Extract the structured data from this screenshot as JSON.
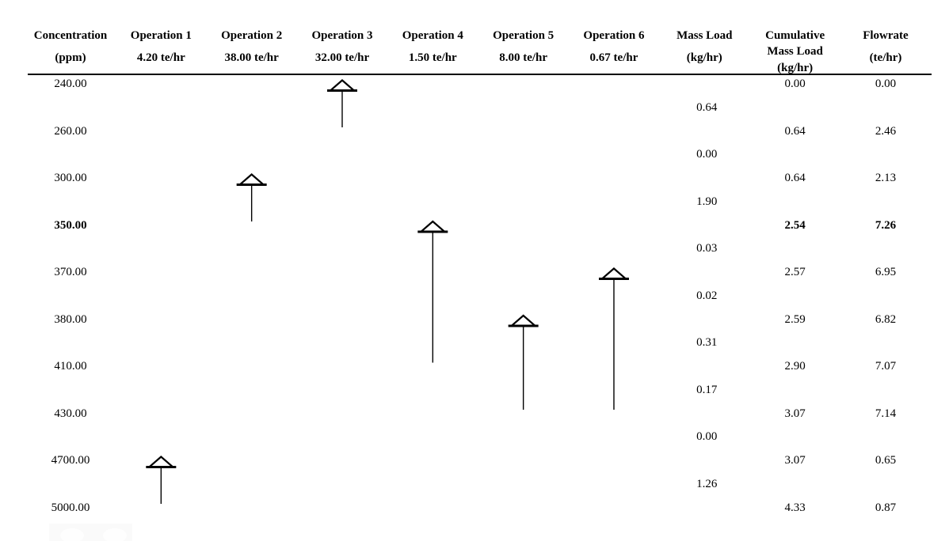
{
  "colors": {
    "background": "#ffffff",
    "text": "#000000",
    "header_rule": "#000000",
    "arrow_stroke": "#000000",
    "arrow_fill": "#ffffff",
    "watermark_box": "#fafafa"
  },
  "chart_data": {
    "type": "table",
    "subtype": "concentration-interval-diagram",
    "title": "",
    "columns": [
      {
        "id": "concentration",
        "lines": [
          "Concentration",
          "(ppm)"
        ]
      },
      {
        "id": "operation-1",
        "lines": [
          "Operation 1",
          "4.20 te/hr"
        ]
      },
      {
        "id": "operation-2",
        "lines": [
          "Operation 2",
          "38.00 te/hr"
        ]
      },
      {
        "id": "operation-3",
        "lines": [
          "Operation 3",
          "32.00 te/hr"
        ]
      },
      {
        "id": "operation-4",
        "lines": [
          "Operation 4",
          "1.50 te/hr"
        ]
      },
      {
        "id": "operation-5",
        "lines": [
          "Operation 5",
          "8.00 te/hr"
        ]
      },
      {
        "id": "operation-6",
        "lines": [
          "Operation 6",
          "0.67 te/hr"
        ]
      },
      {
        "id": "mass-load",
        "lines": [
          "Mass Load",
          "(kg/hr)"
        ]
      },
      {
        "id": "cumulative-mass-load",
        "lines": [
          "Cumulative",
          "Mass Load",
          "(kg/hr)"
        ]
      },
      {
        "id": "flowrate",
        "lines": [
          "Flowrate",
          "(te/hr)"
        ]
      }
    ],
    "rows": [
      {
        "concentration": "240.00",
        "cumulative_mass_load": "0.00",
        "flowrate": "0.00",
        "bold": false
      },
      {
        "concentration": "260.00",
        "cumulative_mass_load": "0.64",
        "flowrate": "2.46",
        "bold": false
      },
      {
        "concentration": "300.00",
        "cumulative_mass_load": "0.64",
        "flowrate": "2.13",
        "bold": false
      },
      {
        "concentration": "350.00",
        "cumulative_mass_load": "2.54",
        "flowrate": "7.26",
        "bold": true
      },
      {
        "concentration": "370.00",
        "cumulative_mass_load": "2.57",
        "flowrate": "6.95",
        "bold": false
      },
      {
        "concentration": "380.00",
        "cumulative_mass_load": "2.59",
        "flowrate": "6.82",
        "bold": false
      },
      {
        "concentration": "410.00",
        "cumulative_mass_load": "2.90",
        "flowrate": "7.07",
        "bold": false
      },
      {
        "concentration": "430.00",
        "cumulative_mass_load": "3.07",
        "flowrate": "7.14",
        "bold": false
      },
      {
        "concentration": "4700.00",
        "cumulative_mass_load": "3.07",
        "flowrate": "0.65",
        "bold": false
      },
      {
        "concentration": "5000.00",
        "cumulative_mass_load": "4.33",
        "flowrate": "0.87",
        "bold": false
      }
    ],
    "interval_mass_loads": [
      "0.64",
      "0.00",
      "1.90",
      "0.03",
      "0.02",
      "0.31",
      "0.17",
      "0.00",
      "1.26"
    ],
    "operations": [
      {
        "label": "Operation 1",
        "flowrate": "4.20 te/hr",
        "column": 1,
        "head_row": 8,
        "tail_row": 9,
        "head_ppm": "4700.00",
        "tail_ppm": "5000.00"
      },
      {
        "label": "Operation 2",
        "flowrate": "38.00 te/hr",
        "column": 2,
        "head_row": 2,
        "tail_row": 3,
        "head_ppm": "300.00",
        "tail_ppm": "350.00"
      },
      {
        "label": "Operation 3",
        "flowrate": "32.00 te/hr",
        "column": 3,
        "head_row": 0,
        "tail_row": 1,
        "head_ppm": "240.00",
        "tail_ppm": "260.00"
      },
      {
        "label": "Operation 4",
        "flowrate": "1.50 te/hr",
        "column": 4,
        "head_row": 3,
        "tail_row": 6,
        "head_ppm": "350.00",
        "tail_ppm": "410.00"
      },
      {
        "label": "Operation 5",
        "flowrate": "8.00 te/hr",
        "column": 5,
        "head_row": 5,
        "tail_row": 7,
        "head_ppm": "380.00",
        "tail_ppm": "430.00"
      },
      {
        "label": "Operation 6",
        "flowrate": "0.67 te/hr",
        "column": 6,
        "head_row": 4,
        "tail_row": 7,
        "head_ppm": "370.00",
        "tail_ppm": "430.00"
      }
    ]
  }
}
